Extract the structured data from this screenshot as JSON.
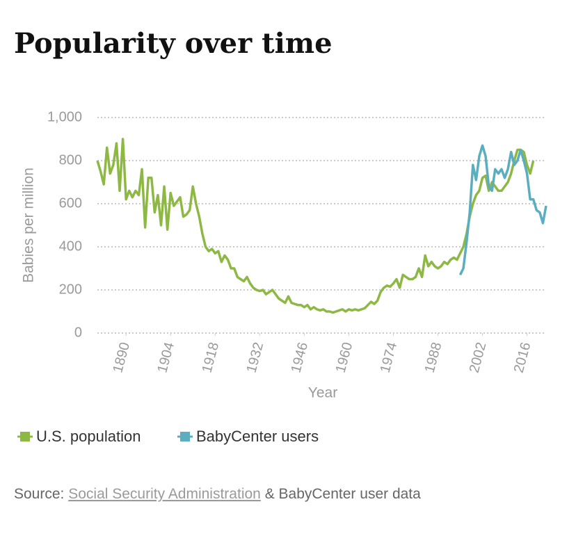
{
  "chart_data": {
    "type": "line",
    "title": "Popularity over time",
    "y_label": "Babies per million",
    "x_label": "Year",
    "xlim": [
      1881,
      2022
    ],
    "ylim": [
      0,
      1000
    ],
    "xticks": [
      1890,
      1904,
      1918,
      1932,
      1946,
      1960,
      1974,
      1988,
      2002,
      2016
    ],
    "yticks": [
      0,
      200,
      400,
      600,
      800,
      {
        "value": 1000,
        "label": "1,000"
      }
    ],
    "grid": true,
    "x": [
      1881,
      1882,
      1883,
      1884,
      1885,
      1886,
      1887,
      1888,
      1889,
      1890,
      1891,
      1892,
      1893,
      1894,
      1895,
      1896,
      1897,
      1898,
      1899,
      1900,
      1901,
      1902,
      1903,
      1904,
      1905,
      1906,
      1907,
      1908,
      1909,
      1910,
      1911,
      1912,
      1913,
      1914,
      1915,
      1916,
      1917,
      1918,
      1919,
      1920,
      1921,
      1922,
      1923,
      1924,
      1925,
      1926,
      1927,
      1928,
      1929,
      1930,
      1931,
      1932,
      1933,
      1934,
      1935,
      1936,
      1937,
      1938,
      1939,
      1940,
      1941,
      1942,
      1943,
      1944,
      1945,
      1946,
      1947,
      1948,
      1949,
      1950,
      1951,
      1952,
      1953,
      1954,
      1955,
      1956,
      1957,
      1958,
      1959,
      1960,
      1961,
      1962,
      1963,
      1964,
      1965,
      1966,
      1967,
      1968,
      1969,
      1970,
      1971,
      1972,
      1973,
      1974,
      1975,
      1976,
      1977,
      1978,
      1979,
      1980,
      1981,
      1982,
      1983,
      1984,
      1985,
      1986,
      1987,
      1988,
      1989,
      1990,
      1991,
      1992,
      1993,
      1994,
      1995,
      1996,
      1997,
      1998,
      1999,
      2000,
      2001,
      2002,
      2003,
      2004,
      2005,
      2006,
      2007,
      2008,
      2009,
      2010,
      2011,
      2012,
      2013,
      2014,
      2015,
      2016,
      2017,
      2018,
      2019,
      2020,
      2021,
      2022
    ],
    "series": [
      {
        "name": "U.S. population",
        "color": "#8db843",
        "values": [
          800,
          750,
          690,
          860,
          740,
          780,
          880,
          660,
          900,
          620,
          660,
          630,
          660,
          640,
          760,
          490,
          720,
          720,
          560,
          640,
          500,
          680,
          480,
          650,
          590,
          610,
          630,
          540,
          550,
          570,
          680,
          600,
          540,
          460,
          400,
          380,
          390,
          370,
          380,
          330,
          360,
          340,
          300,
          300,
          260,
          250,
          240,
          260,
          230,
          210,
          200,
          195,
          200,
          180,
          190,
          200,
          180,
          160,
          150,
          140,
          170,
          140,
          135,
          130,
          130,
          120,
          130,
          110,
          120,
          110,
          105,
          110,
          100,
          100,
          95,
          100,
          105,
          110,
          100,
          110,
          105,
          110,
          105,
          110,
          115,
          130,
          145,
          135,
          150,
          190,
          210,
          220,
          215,
          230,
          250,
          210,
          270,
          260,
          250,
          250,
          260,
          300,
          260,
          360,
          310,
          330,
          310,
          300,
          310,
          330,
          320,
          340,
          350,
          340,
          370,
          400,
          460,
          540,
          600,
          640,
          660,
          720,
          730,
          660,
          700,
          680,
          660,
          660,
          680,
          700,
          740,
          800,
          850,
          850,
          840,
          780,
          740,
          800,
          null,
          null,
          null,
          null
        ]
      },
      {
        "name": "BabyCenter users",
        "color": "#5aaebf",
        "values": [
          null,
          null,
          null,
          null,
          null,
          null,
          null,
          null,
          null,
          null,
          null,
          null,
          null,
          null,
          null,
          null,
          null,
          null,
          null,
          null,
          null,
          null,
          null,
          null,
          null,
          null,
          null,
          null,
          null,
          null,
          null,
          null,
          null,
          null,
          null,
          null,
          null,
          null,
          null,
          null,
          null,
          null,
          null,
          null,
          null,
          null,
          null,
          null,
          null,
          null,
          null,
          null,
          null,
          null,
          null,
          null,
          null,
          null,
          null,
          null,
          null,
          null,
          null,
          null,
          null,
          null,
          null,
          null,
          null,
          null,
          null,
          null,
          null,
          null,
          null,
          null,
          null,
          null,
          null,
          null,
          null,
          null,
          null,
          null,
          null,
          null,
          null,
          null,
          null,
          null,
          null,
          null,
          null,
          null,
          null,
          null,
          null,
          null,
          null,
          null,
          null,
          null,
          null,
          null,
          null,
          null,
          null,
          null,
          null,
          null,
          null,
          null,
          null,
          null,
          270,
          300,
          420,
          560,
          780,
          710,
          820,
          870,
          820,
          680,
          660,
          760,
          740,
          760,
          720,
          760,
          840,
          780,
          800,
          850,
          800,
          740,
          620,
          620,
          570,
          560,
          510,
          590
        ]
      }
    ]
  },
  "source": {
    "prefix": "Source:",
    "link": "Social Security Administration",
    "suffix": "& BabyCenter user data"
  }
}
